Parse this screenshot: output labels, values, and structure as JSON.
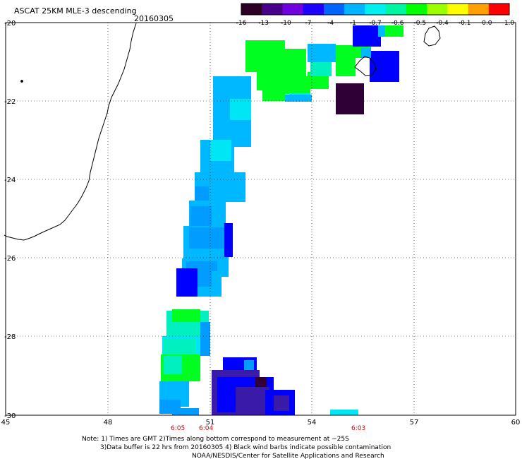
{
  "header": {
    "title": "ASCAT 25KM MLE-3 descending",
    "date": "20160305"
  },
  "colorbar": {
    "labels": [
      "-16",
      "-13",
      "-10",
      "-7",
      "-4",
      "-1",
      "-0.7",
      "-0.6",
      "-0.5",
      "-0.4",
      "-0.1",
      "0.0",
      "1.0"
    ],
    "colors": [
      "#2b0024",
      "#46008c",
      "#6f00e0",
      "#1e00ff",
      "#0064ff",
      "#00b4ff",
      "#00f0f0",
      "#00f5a0",
      "#00ff00",
      "#9cff00",
      "#ffff00",
      "#ffa000",
      "#ff0000"
    ]
  },
  "axes": {
    "x_ticks": [
      "45",
      "48",
      "51",
      "54",
      "57",
      "60"
    ],
    "y_ticks": [
      "-20",
      "-22",
      "-24",
      "-26",
      "-28",
      "-30"
    ]
  },
  "times": [
    "6:05",
    "6:04",
    "6:03"
  ],
  "colors": {
    "time_label": "#d40000",
    "coast": "#000000",
    "dark": "#2e0036",
    "purple": "#3a1aa8",
    "blue": "#0000ff",
    "azure": "#009cff",
    "lightblue": "#00b8ff",
    "cyan": "#00e6f5",
    "aqua": "#00f0c0",
    "green": "#00ff20"
  },
  "footer": {
    "line1": "Note: 1) Times are GMT 2)Times along bottom correspond to measurement at ~25S",
    "line2": "3)Data buffer is 22 hrs from 20160305 4) Black wind barbs indicate possible contamination",
    "line3": "NOAA/NESDIS/Center for Satellite Applications and Research"
  }
}
